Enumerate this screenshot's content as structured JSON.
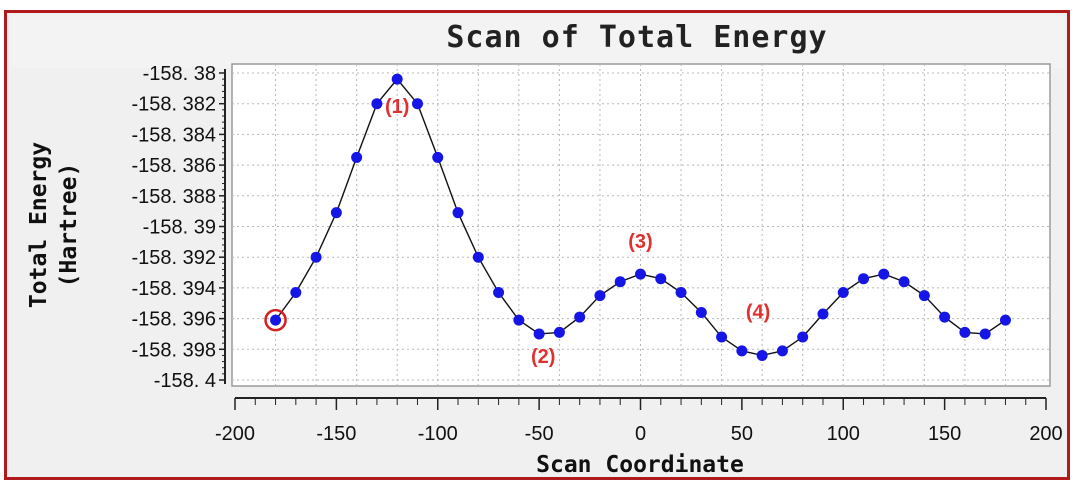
{
  "chart_data": {
    "type": "line",
    "title": "Scan of Total Energy",
    "xlabel": "Scan Coordinate",
    "ylabel_line1": "Total Energy",
    "ylabel_line2": "(Hartree)",
    "xlim": [
      -200,
      200
    ],
    "ylim": [
      -158.4,
      -158.38
    ],
    "x_ticks": [
      -200,
      -150,
      -100,
      -50,
      0,
      50,
      100,
      150,
      200
    ],
    "x_tick_labels": [
      "-200",
      "-150",
      "-100",
      "-50",
      "0",
      "50",
      "100",
      "150",
      "200"
    ],
    "y_ticks": [
      -158.38,
      -158.382,
      -158.384,
      -158.386,
      -158.388,
      -158.39,
      -158.392,
      -158.394,
      -158.396,
      -158.398,
      -158.4
    ],
    "y_tick_labels": [
      "-158. 38",
      "-158. 382",
      "-158. 384",
      "-158. 386",
      "-158. 388",
      "-158. 39",
      "-158. 392",
      "-158. 394",
      "-158. 396",
      "-158. 398",
      "-158. 4"
    ],
    "grid": true,
    "series": [
      {
        "x": [
          -180,
          -170,
          -160,
          -150,
          -140,
          -130,
          -120,
          -110,
          -100,
          -90,
          -80,
          -70,
          -60,
          -50,
          -40,
          -30,
          -20,
          -10,
          0,
          10,
          20,
          30,
          40,
          50,
          60,
          70,
          80,
          90,
          100,
          110,
          120,
          130,
          140,
          150,
          160,
          170,
          180
        ],
        "y": [
          -158.3961,
          -158.3943,
          -158.392,
          -158.3891,
          -158.3855,
          -158.382,
          -158.3804,
          -158.382,
          -158.3855,
          -158.3891,
          -158.392,
          -158.3943,
          -158.3961,
          -158.397,
          -158.3969,
          -158.3959,
          -158.3945,
          -158.3936,
          -158.3931,
          -158.3934,
          -158.3943,
          -158.3956,
          -158.3972,
          -158.3981,
          -158.3984,
          -158.3981,
          -158.3972,
          -158.3957,
          -158.3943,
          -158.3934,
          -158.3931,
          -158.3936,
          -158.3945,
          -158.3959,
          -158.3969,
          -158.397,
          -158.3961
        ],
        "color": "#1515e6"
      }
    ],
    "highlighted_point": {
      "x": -180,
      "y": -158.3961,
      "color": "#d42020"
    },
    "annotations": [
      {
        "text": "(1)",
        "x": -120,
        "y": -158.3826
      },
      {
        "text": "(2)",
        "x": -48,
        "y": -158.3989
      },
      {
        "text": "(3)",
        "x": 0,
        "y": -158.3914
      },
      {
        "text": "(4)",
        "x": 58,
        "y": -158.396
      }
    ]
  }
}
